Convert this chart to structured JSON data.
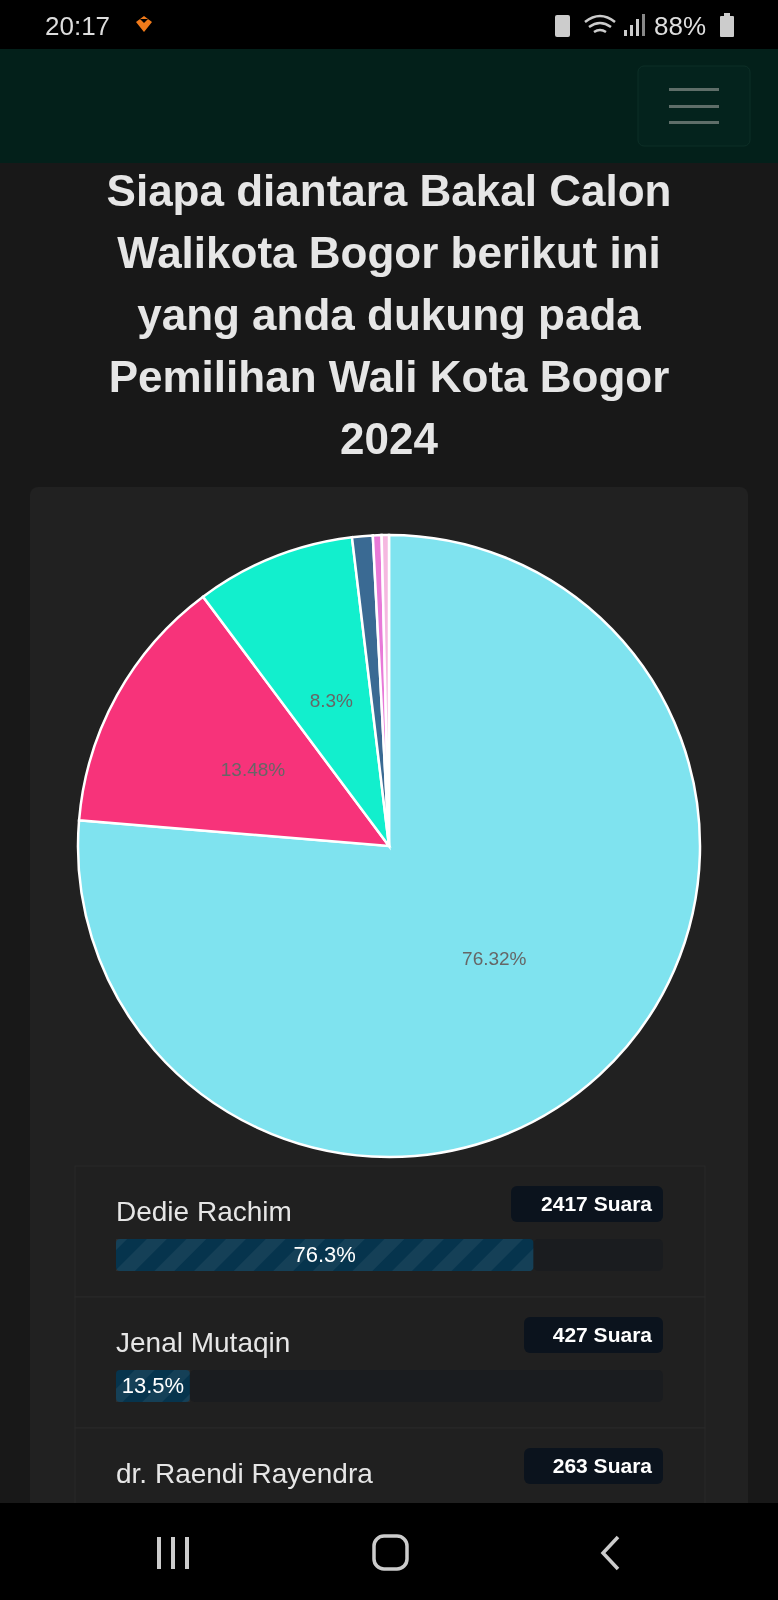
{
  "chart_data": [
    {
      "type": "pie",
      "title": "Siapa diantara Bakal Calon Walikota Bogor berikut ini yang anda dukung pada Pemilihan Wali Kota Bogor 2024",
      "categories": [
        null,
        null,
        null,
        null,
        null,
        null
      ],
      "values": [
        76.32,
        13.48,
        8.3,
        1.07,
        0.45,
        0.38
      ],
      "colors": [
        "#7fe3ef",
        "#f7337a",
        "#12efcd",
        "#3a6a93",
        "#e879d8",
        "#f5b8e0"
      ],
      "value_labels": [
        "76.32%",
        "13.48%",
        "8.3%",
        null,
        null,
        null
      ],
      "annotations": [
        "20:17",
        "88%"
      ]
    },
    {
      "type": "bar",
      "orientation": "horizontal",
      "categories": [
        "Dedie Rachim",
        "Jenal Mutaqin",
        "dr. Raendi Rayendra"
      ],
      "values": [
        76.3,
        13.5,
        null
      ],
      "color": "#06344d",
      "xlim": [
        0,
        100
      ],
      "value_labels": [
        "76.3%",
        "13.5%",
        null
      ],
      "annotations": [
        "2417 Suara",
        "427 Suara",
        "263 Suara"
      ]
    }
  ]
}
